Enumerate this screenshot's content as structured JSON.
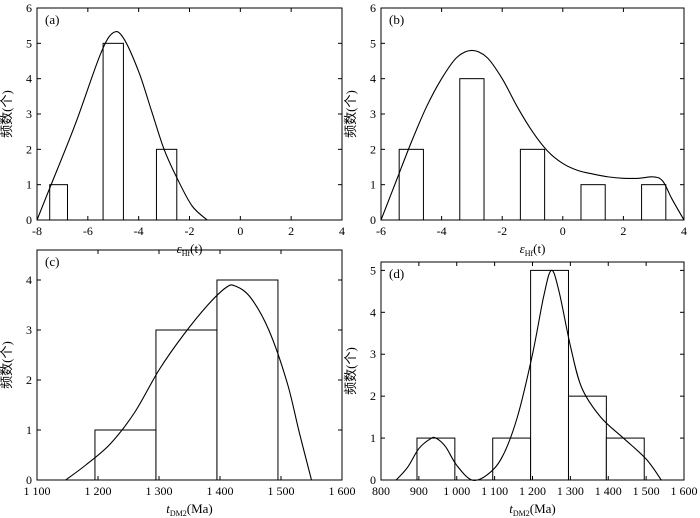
{
  "chart_data": [
    {
      "type": "bar",
      "panel_label": "(a)",
      "xlim": [
        -8,
        4
      ],
      "ylim": [
        0,
        6
      ],
      "xticks": [
        -8,
        -6,
        -4,
        -2,
        0,
        2,
        4
      ],
      "yticks": [
        0,
        1,
        2,
        3,
        4,
        5,
        6
      ],
      "xtick_labels": [
        "-8",
        "-6",
        "-4",
        "-2",
        "0",
        "2",
        "4"
      ],
      "ytick_labels": [
        "0",
        "1",
        "2",
        "3",
        "4",
        "5",
        "6"
      ],
      "xlabel": {
        "base": "ε",
        "sub": "Hf",
        "tail": "(t)"
      },
      "ylabel": "频数(个)",
      "bars": [
        {
          "x0": -7.5,
          "x1": -6.8,
          "value": 1
        },
        {
          "x0": -5.4,
          "x1": -4.6,
          "value": 5
        },
        {
          "x0": -3.3,
          "x1": -2.5,
          "value": 2
        }
      ],
      "curve": [
        [
          -8,
          0
        ],
        [
          -7.5,
          0.9
        ],
        [
          -6.5,
          2.7
        ],
        [
          -5.5,
          4.7
        ],
        [
          -5,
          5.3
        ],
        [
          -4.6,
          5.15
        ],
        [
          -4,
          4.2
        ],
        [
          -3.5,
          3.1
        ],
        [
          -3,
          2
        ],
        [
          -2.5,
          1.2
        ],
        [
          -1.9,
          0.4
        ],
        [
          -1.3,
          0
        ]
      ]
    },
    {
      "type": "bar",
      "panel_label": "(b)",
      "xlim": [
        -6,
        4
      ],
      "ylim": [
        0,
        6
      ],
      "xticks": [
        -6,
        -4,
        -2,
        0,
        2,
        4
      ],
      "yticks": [
        0,
        1,
        2,
        3,
        4,
        5,
        6
      ],
      "xtick_labels": [
        "-6",
        "-4",
        "-2",
        "0",
        "2",
        "4"
      ],
      "ytick_labels": [
        "0",
        "1",
        "2",
        "3",
        "4",
        "5",
        "6"
      ],
      "xlabel": {
        "base": "ε",
        "sub": "Hf",
        "tail": "(t)"
      },
      "ylabel": "频数(个)",
      "bars": [
        {
          "x0": -5.4,
          "x1": -4.6,
          "value": 2
        },
        {
          "x0": -3.4,
          "x1": -2.6,
          "value": 4
        },
        {
          "x0": -1.4,
          "x1": -0.6,
          "value": 2
        },
        {
          "x0": 0.6,
          "x1": 1.4,
          "value": 1
        },
        {
          "x0": 2.6,
          "x1": 3.4,
          "value": 1
        }
      ],
      "curve": [
        [
          -6,
          0
        ],
        [
          -5.5,
          1.1
        ],
        [
          -5,
          2.2
        ],
        [
          -4.5,
          3.2
        ],
        [
          -4,
          4
        ],
        [
          -3.5,
          4.6
        ],
        [
          -3,
          4.8
        ],
        [
          -2.5,
          4.6
        ],
        [
          -2,
          4
        ],
        [
          -1.5,
          3.2
        ],
        [
          -1,
          2.5
        ],
        [
          -0.5,
          1.95
        ],
        [
          0,
          1.6
        ],
        [
          0.5,
          1.4
        ],
        [
          1,
          1.3
        ],
        [
          1.5,
          1.22
        ],
        [
          2,
          1.18
        ],
        [
          2.5,
          1.18
        ],
        [
          3,
          1.22
        ],
        [
          3.3,
          1.1
        ],
        [
          3.6,
          0.6
        ],
        [
          4,
          0
        ]
      ]
    },
    {
      "type": "bar",
      "panel_label": "(c)",
      "xlim": [
        1100,
        1600
      ],
      "ylim": [
        0,
        4.6
      ],
      "xticks": [
        1100,
        1200,
        1300,
        1400,
        1500,
        1600
      ],
      "yticks": [
        0,
        1,
        2,
        3,
        4
      ],
      "xtick_labels": [
        "1 100",
        "1 200",
        "1 300",
        "1 400",
        "1 500",
        "1 600"
      ],
      "ytick_labels": [
        "0",
        "1",
        "2",
        "3",
        "4"
      ],
      "xlabel": {
        "base": "t",
        "sub": "DM2",
        "tail": "(Ma)"
      },
      "ylabel": "频数(个)",
      "bars": [
        {
          "x0": 1195,
          "x1": 1295,
          "value": 1
        },
        {
          "x0": 1295,
          "x1": 1395,
          "value": 3
        },
        {
          "x0": 1395,
          "x1": 1495,
          "value": 4
        }
      ],
      "curve": [
        [
          1147,
          0
        ],
        [
          1180,
          0.3
        ],
        [
          1220,
          0.72
        ],
        [
          1260,
          1.35
        ],
        [
          1300,
          2.2
        ],
        [
          1340,
          2.9
        ],
        [
          1380,
          3.5
        ],
        [
          1410,
          3.85
        ],
        [
          1425,
          3.88
        ],
        [
          1450,
          3.65
        ],
        [
          1480,
          3.0
        ],
        [
          1510,
          1.95
        ],
        [
          1530,
          0.95
        ],
        [
          1550,
          0
        ]
      ]
    },
    {
      "type": "bar",
      "panel_label": "(d)",
      "xlim": [
        800,
        1600
      ],
      "ylim": [
        0,
        5.2
      ],
      "xticks": [
        800,
        900,
        1000,
        1100,
        1200,
        1300,
        1400,
        1500,
        1600
      ],
      "yticks": [
        0,
        1,
        2,
        3,
        4,
        5
      ],
      "xtick_labels": [
        "800",
        "900",
        "1 000",
        "1 100",
        "1 200",
        "1 300",
        "1 400",
        "1 500",
        "1 600"
      ],
      "ytick_labels": [
        "0",
        "1",
        "2",
        "3",
        "4",
        "5"
      ],
      "xlabel": {
        "base": "t",
        "sub": "DM2",
        "tail": "(Ma)"
      },
      "ylabel": "频数(个)",
      "bars": [
        {
          "x0": 895,
          "x1": 995,
          "value": 1
        },
        {
          "x0": 1095,
          "x1": 1195,
          "value": 1
        },
        {
          "x0": 1195,
          "x1": 1295,
          "value": 5
        },
        {
          "x0": 1295,
          "x1": 1395,
          "value": 2
        },
        {
          "x0": 1395,
          "x1": 1495,
          "value": 1
        }
      ],
      "curve": [
        [
          840,
          0
        ],
        [
          870,
          0.3
        ],
        [
          900,
          0.75
        ],
        [
          930,
          0.98
        ],
        [
          945,
          1.0
        ],
        [
          970,
          0.8
        ],
        [
          1000,
          0.35
        ],
        [
          1040,
          0
        ],
        [
          1080,
          0.12
        ],
        [
          1120,
          0.55
        ],
        [
          1160,
          1.5
        ],
        [
          1200,
          3.0
        ],
        [
          1230,
          4.4
        ],
        [
          1250,
          5.0
        ],
        [
          1270,
          4.5
        ],
        [
          1300,
          3.2
        ],
        [
          1330,
          2.2
        ],
        [
          1380,
          1.5
        ],
        [
          1440,
          1.0
        ],
        [
          1500,
          0.5
        ],
        [
          1540,
          0
        ]
      ]
    }
  ]
}
